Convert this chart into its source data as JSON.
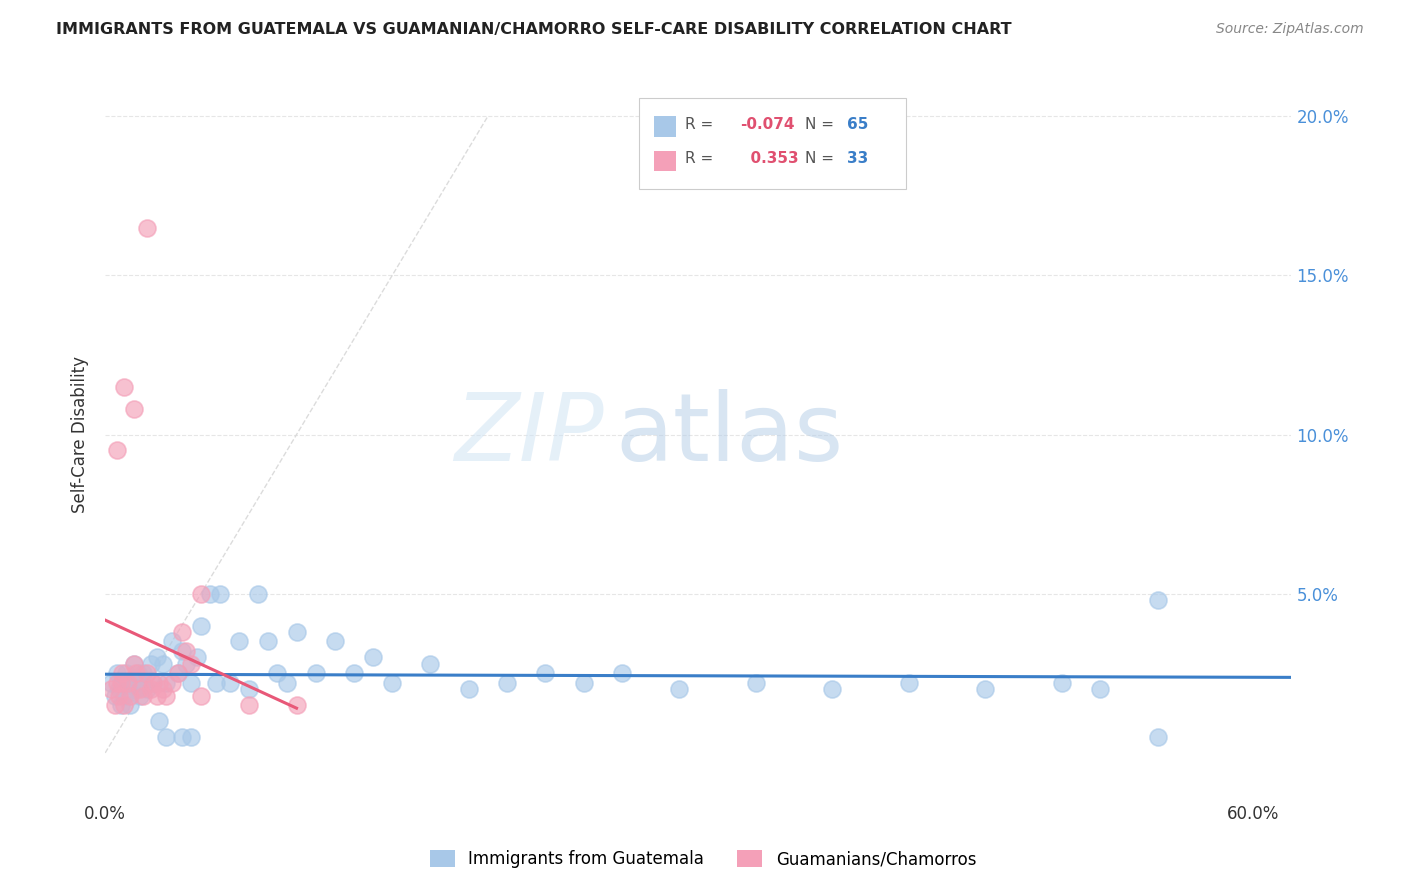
{
  "title": "IMMIGRANTS FROM GUATEMALA VS GUAMANIAN/CHAMORRO SELF-CARE DISABILITY CORRELATION CHART",
  "source": "Source: ZipAtlas.com",
  "ylabel": "Self-Care Disability",
  "xlim": [
    0.0,
    0.62
  ],
  "ylim": [
    -0.015,
    0.215
  ],
  "yticks": [
    0.0,
    0.05,
    0.1,
    0.15,
    0.2
  ],
  "blue_color": "#a8c8e8",
  "pink_color": "#f4a0b8",
  "blue_line_color": "#3a7ec8",
  "pink_line_color": "#e85878",
  "diag_line_color": "#d8d8d8",
  "grid_color": "#e0e0e0",
  "legend_R_blue": "-0.074",
  "legend_N_blue": "65",
  "legend_R_pink": "0.353",
  "legend_N_pink": "33",
  "watermark_zip": "ZIP",
  "watermark_atlas": "atlas",
  "blue_scatter_x": [
    0.003,
    0.005,
    0.006,
    0.007,
    0.008,
    0.009,
    0.01,
    0.011,
    0.012,
    0.013,
    0.014,
    0.015,
    0.016,
    0.017,
    0.018,
    0.019,
    0.02,
    0.022,
    0.024,
    0.025,
    0.027,
    0.03,
    0.032,
    0.035,
    0.038,
    0.04,
    0.042,
    0.045,
    0.048,
    0.05,
    0.055,
    0.058,
    0.06,
    0.065,
    0.07,
    0.075,
    0.08,
    0.085,
    0.09,
    0.095,
    0.1,
    0.11,
    0.12,
    0.13,
    0.14,
    0.15,
    0.17,
    0.19,
    0.21,
    0.23,
    0.25,
    0.27,
    0.3,
    0.34,
    0.38,
    0.42,
    0.46,
    0.5,
    0.52,
    0.55,
    0.028,
    0.032,
    0.04,
    0.045,
    0.55
  ],
  "blue_scatter_y": [
    0.022,
    0.018,
    0.025,
    0.02,
    0.015,
    0.022,
    0.018,
    0.025,
    0.02,
    0.015,
    0.022,
    0.028,
    0.02,
    0.025,
    0.018,
    0.022,
    0.025,
    0.02,
    0.028,
    0.022,
    0.03,
    0.028,
    0.022,
    0.035,
    0.025,
    0.032,
    0.028,
    0.022,
    0.03,
    0.04,
    0.05,
    0.022,
    0.05,
    0.022,
    0.035,
    0.02,
    0.05,
    0.035,
    0.025,
    0.022,
    0.038,
    0.025,
    0.035,
    0.025,
    0.03,
    0.022,
    0.028,
    0.02,
    0.022,
    0.025,
    0.022,
    0.025,
    0.02,
    0.022,
    0.02,
    0.022,
    0.02,
    0.022,
    0.02,
    0.048,
    0.01,
    0.005,
    0.005,
    0.005,
    0.005
  ],
  "pink_scatter_x": [
    0.003,
    0.005,
    0.006,
    0.007,
    0.008,
    0.009,
    0.01,
    0.012,
    0.013,
    0.015,
    0.016,
    0.018,
    0.02,
    0.022,
    0.024,
    0.025,
    0.027,
    0.028,
    0.03,
    0.032,
    0.035,
    0.038,
    0.04,
    0.042,
    0.045,
    0.05,
    0.006,
    0.01,
    0.015,
    0.022,
    0.05,
    0.075,
    0.1
  ],
  "pink_scatter_y": [
    0.02,
    0.015,
    0.022,
    0.018,
    0.022,
    0.025,
    0.015,
    0.022,
    0.018,
    0.028,
    0.025,
    0.02,
    0.018,
    0.025,
    0.02,
    0.022,
    0.018,
    0.022,
    0.02,
    0.018,
    0.022,
    0.025,
    0.038,
    0.032,
    0.028,
    0.05,
    0.095,
    0.115,
    0.108,
    0.165,
    0.018,
    0.015,
    0.015
  ],
  "pink_line_x_start": 0.0,
  "pink_line_x_end": 0.1,
  "blue_line_x_start": 0.0,
  "blue_line_x_end": 0.62
}
